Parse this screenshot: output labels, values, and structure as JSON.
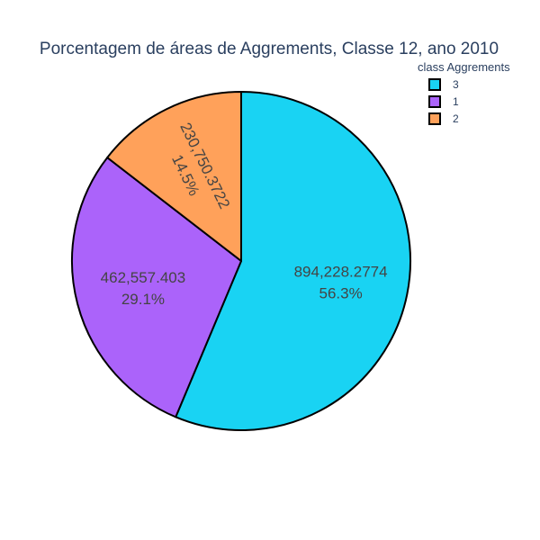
{
  "chart_data": {
    "type": "pie",
    "title": "Porcentagem de áreas de Aggrements, Classe 12, ano 2010",
    "legend_title": "class Aggrements",
    "legend_position": "top-right",
    "slices": [
      {
        "label": "3",
        "value": 894228.2774,
        "value_text": "894,228.2774",
        "percent_text": "56.3%",
        "color": "#19d3f3"
      },
      {
        "label": "1",
        "value": 462557.403,
        "value_text": "462,557.403",
        "percent_text": "29.1%",
        "color": "#ab63fa"
      },
      {
        "label": "2",
        "value": 230750.3722,
        "value_text": "230,750.3722",
        "percent_text": "14.5%",
        "color": "#ffa15a"
      }
    ]
  }
}
